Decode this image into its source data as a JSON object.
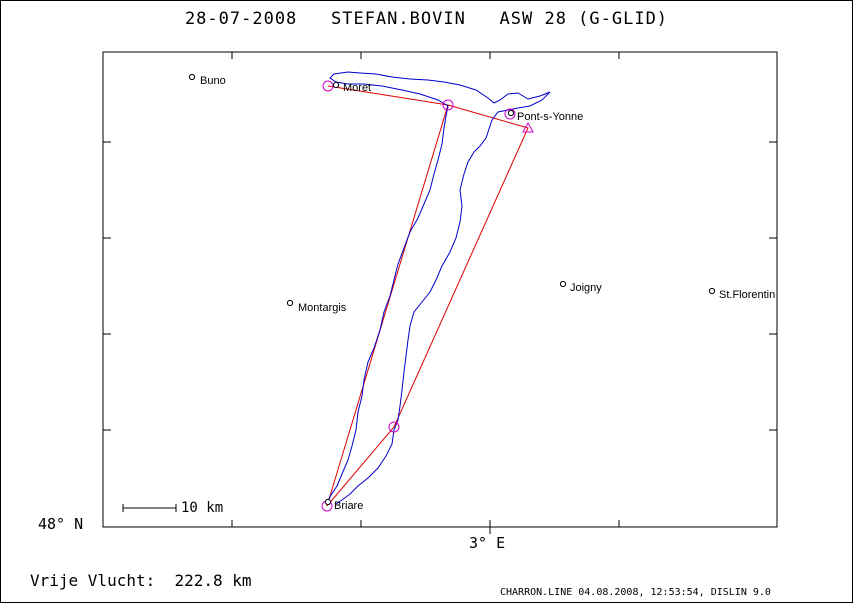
{
  "header": {
    "title": "28-07-2008   STEFAN.BOVIN   ASW 28 (G-GLID)"
  },
  "axes": {
    "lat_label": "48° N",
    "lon_label": "3° E"
  },
  "scale_bar": {
    "label": "10 km"
  },
  "distance": {
    "text": "Vrije Vlucht:  222.8 km"
  },
  "footer": {
    "text": "CHARRON.LINE 04.08.2008, 12:53:54, DISLIN 9.0"
  },
  "towns": [
    {
      "name": "Buno"
    },
    {
      "name": "Moret"
    },
    {
      "name": "Pont-s-Yonne"
    },
    {
      "name": "Montargis"
    },
    {
      "name": "Joigny"
    },
    {
      "name": "St.Florentin"
    },
    {
      "name": "Briare"
    }
  ],
  "colors": {
    "track": "#0000cc",
    "task": "#dd0000",
    "turnpoint": "#cc00cc",
    "frame": "#000000"
  }
}
